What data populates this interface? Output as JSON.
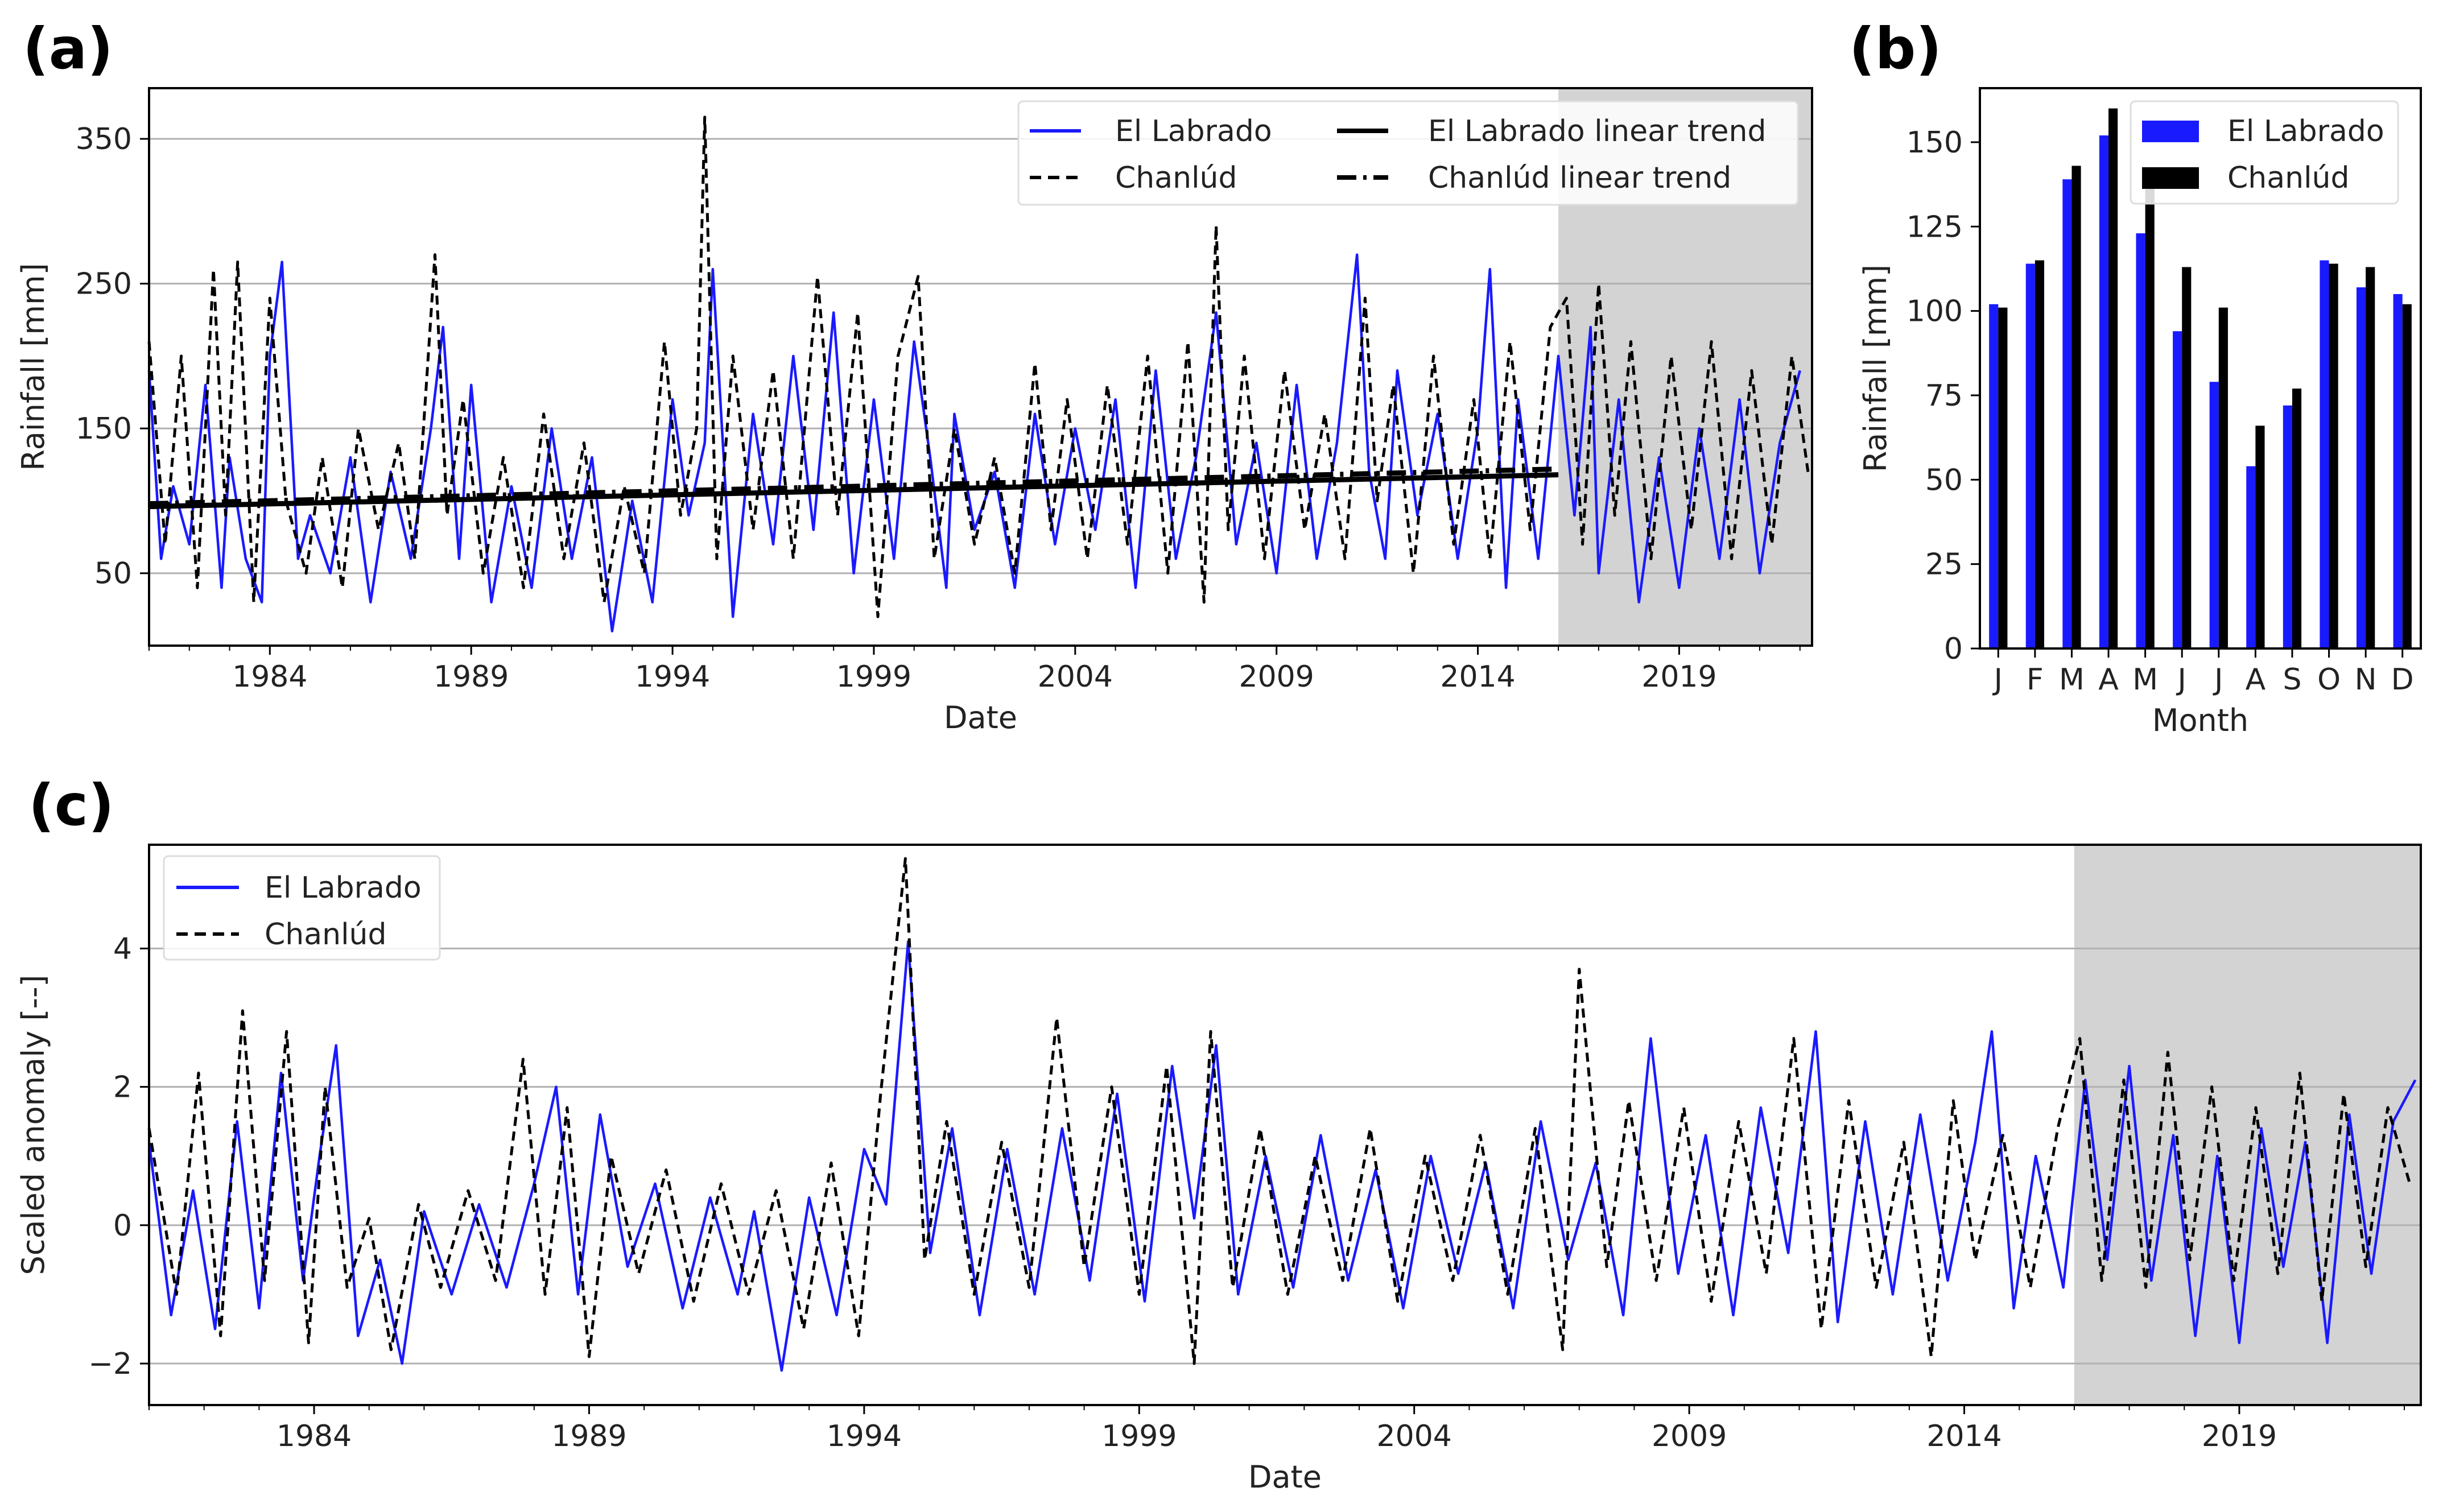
{
  "figure": {
    "panel_a": "(a)",
    "panel_b": "(b)",
    "panel_c": "(c)"
  },
  "colors": {
    "el_labrado": "#1a1aff",
    "chanlud": "#000000",
    "shade": "#d3d3d3",
    "grid": "#b0b0b0"
  },
  "chart_data": [
    {
      "id": "a",
      "type": "line",
      "title": "",
      "xlabel": "Date",
      "ylabel": "Rainfall [mm]",
      "xlim": [
        1981.0,
        2022.3
      ],
      "ylim": [
        0,
        385
      ],
      "xticks": [
        1984,
        1989,
        1994,
        1999,
        2004,
        2009,
        2014,
        2019
      ],
      "yticks": [
        50,
        150,
        250,
        350
      ],
      "grid": "horizontal",
      "shaded_range": [
        2016.0,
        2022.3
      ],
      "legend": {
        "position": "top-right",
        "entries": [
          "El Labrado",
          "Chanlúd",
          "El Labrado linear trend",
          "Chanlúd linear trend"
        ]
      },
      "trends": [
        {
          "name": "El Labrado linear trend",
          "x": [
            1981.0,
            2016.0
          ],
          "y": [
            96,
            118
          ]
        },
        {
          "name": "Chanlúd linear trend",
          "x": [
            1981.0,
            2016.0
          ],
          "y": [
            98,
            122
          ]
        }
      ],
      "series": [
        {
          "name": "El Labrado",
          "x": [
            1981.0,
            1981.3,
            1981.6,
            1982.0,
            1982.4,
            1982.8,
            1983.0,
            1983.4,
            1983.8,
            1984.0,
            1984.3,
            1984.7,
            1985.0,
            1985.5,
            1986.0,
            1986.5,
            1987.0,
            1987.5,
            1988.0,
            1988.3,
            1988.7,
            1989.0,
            1989.5,
            1990.0,
            1990.5,
            1991.0,
            1991.5,
            1992.0,
            1992.5,
            1993.0,
            1993.5,
            1994.0,
            1994.4,
            1994.8,
            1995.0,
            1995.5,
            1996.0,
            1996.5,
            1997.0,
            1997.5,
            1998.0,
            1998.5,
            1999.0,
            1999.5,
            2000.0,
            2000.4,
            2000.8,
            2001.0,
            2001.5,
            2002.0,
            2002.5,
            2003.0,
            2003.5,
            2004.0,
            2004.5,
            2005.0,
            2005.5,
            2006.0,
            2006.5,
            2007.0,
            2007.5,
            2008.0,
            2008.5,
            2009.0,
            2009.5,
            2010.0,
            2010.5,
            2011.0,
            2011.3,
            2011.7,
            2012.0,
            2012.5,
            2013.0,
            2013.5,
            2014.0,
            2014.3,
            2014.7,
            2015.0,
            2015.5,
            2016.0,
            2016.4,
            2016.8,
            2017.0,
            2017.5,
            2018.0,
            2018.5,
            2019.0,
            2019.5,
            2020.0,
            2020.5,
            2021.0,
            2021.5,
            2022.0
          ],
          "y": [
            190,
            60,
            110,
            70,
            180,
            40,
            130,
            60,
            30,
            200,
            265,
            60,
            90,
            50,
            130,
            30,
            120,
            60,
            150,
            220,
            60,
            180,
            30,
            110,
            40,
            150,
            60,
            130,
            10,
            100,
            30,
            170,
            90,
            140,
            260,
            20,
            160,
            70,
            200,
            80,
            230,
            50,
            170,
            60,
            210,
            130,
            40,
            160,
            80,
            120,
            40,
            160,
            70,
            150,
            80,
            170,
            40,
            190,
            60,
            130,
            230,
            70,
            140,
            50,
            180,
            60,
            140,
            270,
            120,
            60,
            190,
            90,
            160,
            60,
            150,
            260,
            40,
            170,
            60,
            200,
            90,
            220,
            50,
            170,
            30,
            130,
            40,
            150,
            60,
            170,
            50,
            140,
            190
          ]
        },
        {
          "name": "Chanlúd",
          "x": [
            1981.0,
            1981.4,
            1981.8,
            1982.2,
            1982.6,
            1982.9,
            1983.2,
            1983.6,
            1984.0,
            1984.4,
            1984.9,
            1985.3,
            1985.8,
            1986.2,
            1986.7,
            1987.2,
            1987.6,
            1988.1,
            1988.4,
            1988.8,
            1989.3,
            1989.8,
            1990.3,
            1990.8,
            1991.3,
            1991.8,
            1992.3,
            1992.8,
            1993.3,
            1993.8,
            1994.2,
            1994.6,
            1994.8,
            1995.1,
            1995.5,
            1996.0,
            1996.5,
            1997.0,
            1997.6,
            1998.1,
            1998.6,
            1999.1,
            1999.6,
            2000.1,
            2000.5,
            2001.0,
            2001.5,
            2002.0,
            2002.5,
            2003.0,
            2003.4,
            2003.8,
            2004.3,
            2004.8,
            2005.3,
            2005.8,
            2006.3,
            2006.8,
            2007.2,
            2007.5,
            2007.8,
            2008.2,
            2008.7,
            2009.2,
            2009.7,
            2010.2,
            2010.7,
            2011.2,
            2011.5,
            2011.9,
            2012.4,
            2012.9,
            2013.4,
            2013.9,
            2014.3,
            2014.8,
            2015.3,
            2015.8,
            2016.2,
            2016.6,
            2017.0,
            2017.4,
            2017.8,
            2018.3,
            2018.8,
            2019.3,
            2019.8,
            2020.3,
            2020.8,
            2021.3,
            2021.8,
            2022.2
          ],
          "y": [
            210,
            70,
            200,
            40,
            260,
            90,
            265,
            30,
            240,
            100,
            50,
            130,
            40,
            150,
            80,
            140,
            60,
            270,
            90,
            170,
            50,
            130,
            40,
            160,
            60,
            140,
            30,
            110,
            50,
            210,
            90,
            150,
            365,
            60,
            200,
            80,
            190,
            60,
            255,
            90,
            230,
            20,
            200,
            255,
            60,
            150,
            70,
            130,
            50,
            195,
            80,
            170,
            60,
            180,
            70,
            200,
            50,
            210,
            30,
            290,
            80,
            200,
            60,
            190,
            80,
            160,
            60,
            240,
            100,
            180,
            50,
            200,
            70,
            170,
            60,
            210,
            80,
            220,
            240,
            70,
            250,
            90,
            210,
            60,
            200,
            80,
            210,
            60,
            190,
            70,
            200,
            120
          ]
        }
      ]
    },
    {
      "id": "b",
      "type": "bar",
      "xlabel": "Month",
      "ylabel": "Rainfall [mm]",
      "ylim": [
        0,
        166
      ],
      "yticks": [
        0,
        25,
        50,
        75,
        100,
        125,
        150
      ],
      "grid": "none",
      "legend": {
        "position": "top-right",
        "entries": [
          "El Labrado",
          "Chanlúd"
        ]
      },
      "categories": [
        "J",
        "F",
        "M",
        "A",
        "M",
        "J",
        "J",
        "A",
        "S",
        "O",
        "N",
        "D"
      ],
      "series": [
        {
          "name": "El Labrado",
          "values": [
            102,
            114,
            139,
            152,
            123,
            94,
            79,
            54,
            72,
            115,
            107,
            105
          ]
        },
        {
          "name": "Chanlúd",
          "values": [
            101,
            115,
            143,
            160,
            140,
            113,
            101,
            66,
            77,
            114,
            113,
            102
          ]
        }
      ]
    },
    {
      "id": "c",
      "type": "line",
      "xlabel": "Date",
      "ylabel": "Scaled anomaly [--]",
      "xlim": [
        1981.0,
        2022.3
      ],
      "ylim": [
        -2.6,
        5.5
      ],
      "xticks": [
        1984,
        1989,
        1994,
        1999,
        2004,
        2009,
        2014,
        2019
      ],
      "yticks": [
        -2,
        0,
        2,
        4
      ],
      "grid": "horizontal",
      "shaded_range": [
        2016.0,
        2022.3
      ],
      "legend": {
        "position": "top-left",
        "entries": [
          "El Labrado",
          "Chanlúd"
        ]
      },
      "series": [
        {
          "name": "El Labrado",
          "x": [
            1981.0,
            1981.4,
            1981.8,
            1982.2,
            1982.6,
            1983.0,
            1983.4,
            1983.8,
            1984.1,
            1984.4,
            1984.8,
            1985.2,
            1985.6,
            1986.0,
            1986.5,
            1987.0,
            1987.5,
            1988.0,
            1988.4,
            1988.8,
            1989.2,
            1989.7,
            1990.2,
            1990.7,
            1991.2,
            1991.7,
            1992.0,
            1992.5,
            1993.0,
            1993.5,
            1994.0,
            1994.4,
            1994.8,
            1995.2,
            1995.6,
            1996.1,
            1996.6,
            1997.1,
            1997.6,
            1998.1,
            1998.6,
            1999.1,
            1999.6,
            2000.0,
            2000.4,
            2000.8,
            2001.3,
            2001.8,
            2002.3,
            2002.8,
            2003.3,
            2003.8,
            2004.3,
            2004.8,
            2005.3,
            2005.8,
            2006.3,
            2006.8,
            2007.3,
            2007.8,
            2008.3,
            2008.8,
            2009.3,
            2009.8,
            2010.3,
            2010.8,
            2011.3,
            2011.7,
            2012.2,
            2012.7,
            2013.2,
            2013.7,
            2014.2,
            2014.5,
            2014.9,
            2015.3,
            2015.8,
            2016.2,
            2016.6,
            2017.0,
            2017.4,
            2017.8,
            2018.2,
            2018.6,
            2019.0,
            2019.4,
            2019.8,
            2020.2,
            2020.6,
            2021.0,
            2021.4,
            2021.8,
            2022.2
          ],
          "y": [
            1.2,
            -1.3,
            0.5,
            -1.5,
            1.5,
            -1.2,
            2.2,
            -0.8,
            1.0,
            2.6,
            -1.6,
            -0.5,
            -2.0,
            0.2,
            -1.0,
            0.3,
            -0.9,
            0.6,
            2.0,
            -1.0,
            1.6,
            -0.6,
            0.6,
            -1.2,
            0.4,
            -1.0,
            0.2,
            -2.1,
            0.4,
            -1.3,
            1.1,
            0.3,
            4.1,
            -0.4,
            1.4,
            -1.3,
            1.1,
            -1.0,
            1.4,
            -0.8,
            1.9,
            -1.1,
            2.3,
            0.1,
            2.6,
            -1.0,
            1.0,
            -0.9,
            1.3,
            -0.8,
            0.8,
            -1.2,
            1.0,
            -0.7,
            0.9,
            -1.2,
            1.5,
            -0.5,
            0.9,
            -1.3,
            2.7,
            -0.7,
            1.3,
            -1.3,
            1.7,
            -0.4,
            2.8,
            -1.4,
            1.5,
            -1.0,
            1.6,
            -0.8,
            1.2,
            2.8,
            -1.2,
            1.0,
            -0.9,
            2.1,
            -0.5,
            2.3,
            -0.8,
            1.3,
            -1.6,
            1.0,
            -1.7,
            1.4,
            -0.6,
            1.2,
            -1.7,
            1.6,
            -0.7,
            1.5,
            2.1
          ]
        },
        {
          "name": "Chanlúd",
          "x": [
            1981.0,
            1981.5,
            1981.9,
            1982.3,
            1982.7,
            1983.1,
            1983.5,
            1983.9,
            1984.2,
            1984.6,
            1985.0,
            1985.4,
            1985.9,
            1986.3,
            1986.8,
            1987.3,
            1987.8,
            1988.2,
            1988.6,
            1989.0,
            1989.4,
            1989.9,
            1990.4,
            1990.9,
            1991.4,
            1991.9,
            1992.4,
            1992.9,
            1993.4,
            1993.9,
            1994.3,
            1994.75,
            1995.1,
            1995.5,
            1996.0,
            1996.5,
            1997.0,
            1997.5,
            1998.0,
            1998.5,
            1999.0,
            1999.5,
            2000.0,
            2000.3,
            2000.7,
            2001.2,
            2001.7,
            2002.2,
            2002.7,
            2003.2,
            2003.7,
            2004.2,
            2004.7,
            2005.2,
            2005.7,
            2006.2,
            2006.7,
            2007.0,
            2007.5,
            2007.9,
            2008.4,
            2008.9,
            2009.4,
            2009.9,
            2010.4,
            2010.9,
            2011.4,
            2011.9,
            2012.4,
            2012.9,
            2013.4,
            2013.8,
            2014.2,
            2014.7,
            2015.2,
            2015.7,
            2016.1,
            2016.5,
            2016.9,
            2017.3,
            2017.7,
            2018.1,
            2018.5,
            2018.9,
            2019.3,
            2019.7,
            2020.1,
            2020.5,
            2020.9,
            2021.3,
            2021.7,
            2022.1
          ],
          "y": [
            1.4,
            -1.0,
            2.2,
            -1.6,
            3.1,
            -0.8,
            2.8,
            -1.7,
            2.0,
            -0.9,
            0.1,
            -1.8,
            0.3,
            -0.9,
            0.5,
            -0.8,
            2.4,
            -1.0,
            1.7,
            -1.9,
            1.0,
            -0.7,
            0.8,
            -1.1,
            0.6,
            -1.0,
            0.5,
            -1.5,
            0.9,
            -1.6,
            1.9,
            5.3,
            -0.5,
            1.5,
            -1.0,
            1.2,
            -0.9,
            3.0,
            -0.6,
            2.0,
            -1.0,
            2.3,
            -2.0,
            2.8,
            -0.9,
            1.4,
            -1.0,
            1.0,
            -0.8,
            1.4,
            -1.1,
            1.0,
            -0.8,
            1.3,
            -1.0,
            1.4,
            -1.8,
            3.7,
            -0.6,
            1.8,
            -0.8,
            1.7,
            -1.1,
            1.5,
            -0.7,
            2.7,
            -1.5,
            1.8,
            -0.9,
            1.2,
            -1.9,
            1.8,
            -0.5,
            1.3,
            -0.9,
            1.4,
            2.7,
            -0.8,
            2.1,
            -0.9,
            2.5,
            -0.5,
            2.0,
            -0.8,
            1.7,
            -0.7,
            2.2,
            -1.1,
            1.9,
            -0.6,
            1.7,
            0.6
          ]
        }
      ]
    }
  ]
}
